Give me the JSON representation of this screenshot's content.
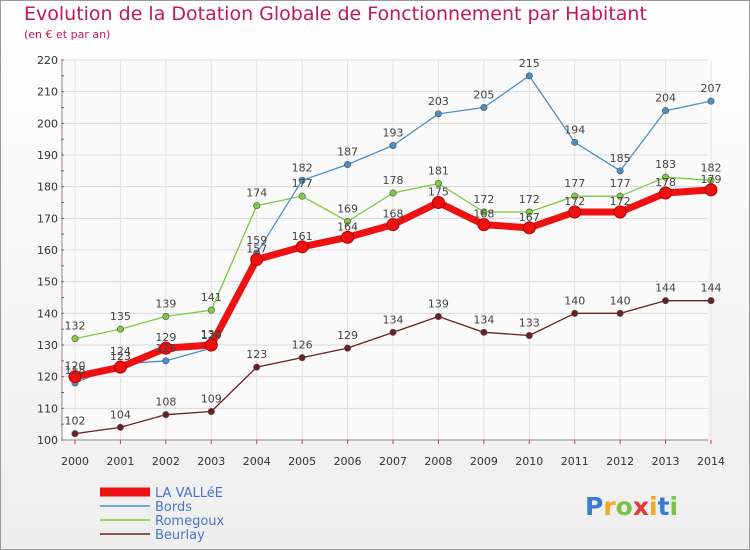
{
  "title": "Evolution de la Dotation Globale de Fonctionnement par Habitant",
  "subtitle": "(en € et par an)",
  "chart_data": {
    "type": "line",
    "x": [
      "2000",
      "2001",
      "2002",
      "2003",
      "2004",
      "2005",
      "2006",
      "2007",
      "2008",
      "2009",
      "2010",
      "2011",
      "2012",
      "2013",
      "2014"
    ],
    "ylim": [
      100,
      220
    ],
    "yticks": [
      100,
      110,
      120,
      130,
      140,
      150,
      160,
      170,
      180,
      190,
      200,
      210,
      220
    ],
    "grid": true,
    "legend_position": "bottom-left",
    "series": [
      {
        "name": "LA VALLéE",
        "color": "#ee1111",
        "values": [
          120,
          123,
          129,
          130,
          157,
          161,
          164,
          168,
          175,
          168,
          167,
          172,
          172,
          178,
          179
        ]
      },
      {
        "name": "Bords",
        "color": "#4a90c8",
        "values": [
          118,
          124,
          125,
          129,
          159,
          182,
          187,
          193,
          203,
          205,
          215,
          194,
          185,
          204,
          207
        ]
      },
      {
        "name": "Romegoux",
        "color": "#7ecb3c",
        "values": [
          132,
          135,
          139,
          141,
          174,
          177,
          169,
          178,
          181,
          172,
          172,
          177,
          177,
          183,
          182
        ]
      },
      {
        "name": "Beurlay",
        "color": "#6b1f1f",
        "values": [
          102,
          104,
          108,
          109,
          123,
          126,
          129,
          134,
          139,
          134,
          133,
          140,
          140,
          144,
          144
        ]
      }
    ]
  },
  "logo": {
    "letters": [
      "P",
      "r",
      "o",
      "x",
      "i",
      "t",
      "i"
    ],
    "colors": [
      "#3a7bd5",
      "#f5a623",
      "#7cc243",
      "#e53935",
      "#f5a623",
      "#3a7bd5",
      "#7cc243"
    ]
  }
}
